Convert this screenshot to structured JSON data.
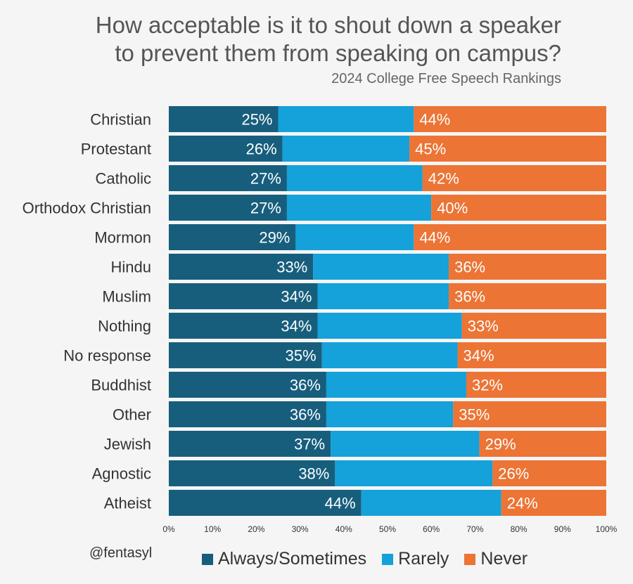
{
  "chart_data": {
    "type": "bar",
    "orientation": "horizontal",
    "stacked": true,
    "title_lines": [
      "How acceptable is it to shout down a speaker",
      "to prevent them from speaking on campus?"
    ],
    "subtitle": "2024 College Free Speech Rankings",
    "categories": [
      "Christian",
      "Protestant",
      "Catholic",
      "Orthodox Christian",
      "Mormon",
      "Hindu",
      "Muslim",
      "Nothing",
      "No response",
      "Buddhist",
      "Other",
      "Jewish",
      "Agnostic",
      "Atheist"
    ],
    "series": [
      {
        "name": "Always/Sometimes",
        "color": "#175e7d",
        "values": [
          25,
          26,
          27,
          27,
          29,
          33,
          34,
          34,
          35,
          36,
          36,
          37,
          38,
          44
        ],
        "labels": [
          "25%",
          "26%",
          "27%",
          "27%",
          "29%",
          "33%",
          "34%",
          "34%",
          "35%",
          "36%",
          "36%",
          "37%",
          "38%",
          "44%"
        ]
      },
      {
        "name": "Rarely",
        "color": "#15a1d9",
        "values": [
          31,
          29,
          31,
          33,
          27,
          31,
          30,
          33,
          31,
          32,
          29,
          34,
          36,
          32
        ]
      },
      {
        "name": "Never",
        "color": "#ec7435",
        "values": [
          44,
          45,
          42,
          40,
          44,
          36,
          36,
          33,
          34,
          32,
          35,
          29,
          26,
          24
        ],
        "labels": [
          "44%",
          "45%",
          "42%",
          "40%",
          "44%",
          "36%",
          "36%",
          "33%",
          "34%",
          "32%",
          "35%",
          "29%",
          "26%",
          "24%"
        ]
      }
    ],
    "xlim": [
      0,
      100
    ],
    "xticks": [
      0,
      10,
      20,
      30,
      40,
      50,
      60,
      70,
      80,
      90,
      100
    ],
    "xtick_labels": [
      "0%",
      "10%",
      "20%",
      "30%",
      "40%",
      "50%",
      "60%",
      "70%",
      "80%",
      "90%",
      "100%"
    ],
    "grid": false,
    "legend_position": "bottom"
  },
  "attribution": "@fentasyl"
}
